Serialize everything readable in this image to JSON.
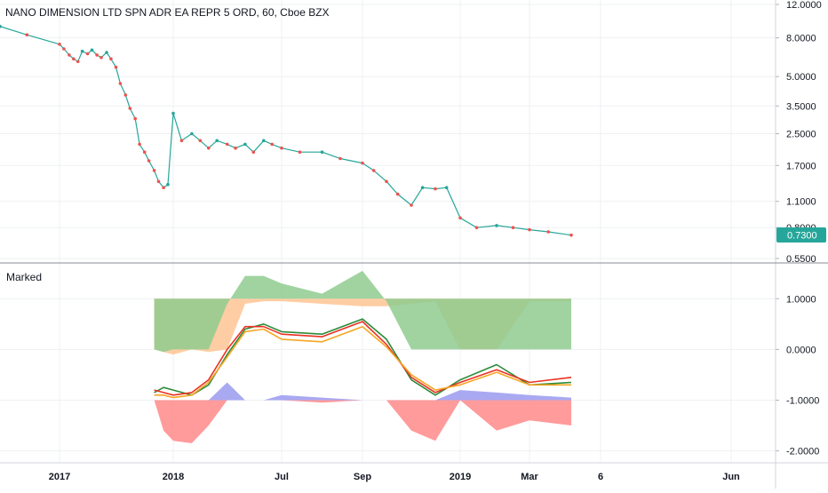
{
  "header": {
    "symbol_title": "NANO DIMENSION LTD SPN ADR EA REPR 5 ORD, 60, Cboe BZX"
  },
  "indicator": {
    "title": "Marked"
  },
  "colors": {
    "grid": "#eef0f3",
    "separator": "#878b94",
    "candle_up": "#26a69a",
    "candle_down": "#ef5350",
    "price_badge": "#26a69a",
    "indicator_green": "#2e8b3a",
    "indicator_red": "#ea3323",
    "indicator_orange": "#f5a623",
    "area_green": "#8fcb8f",
    "area_peach": "#ffc899",
    "area_blue": "#9a9af0",
    "area_red": "#ff8a8a"
  },
  "chart_data": [
    {
      "type": "line",
      "title": "NANO DIMENSION LTD SPN ADR EA REPR 5 ORD, 60, Cboe BZX",
      "scale": "log",
      "x_labels": [
        "2017",
        "2018",
        "Jul",
        "Sep",
        "2019",
        "Mar",
        "6",
        "Jun"
      ],
      "y_ticks": [
        "12.0000",
        "8.0000",
        "5.0000",
        "3.5000",
        "2.5000",
        "1.7000",
        "1.1000",
        "0.8000",
        "0.5500"
      ],
      "last_price": "0.7300",
      "x": [
        "2016-12-01",
        "2016-12-15",
        "2017-01-01",
        "2017-01-15",
        "2017-02-01",
        "2017-02-15",
        "2017-03-01",
        "2017-03-15",
        "2017-04-01",
        "2017-04-15",
        "2017-05-01",
        "2017-05-15",
        "2017-06-01",
        "2017-06-15",
        "2017-07-01",
        "2017-07-15",
        "2017-08-01",
        "2017-08-15",
        "2017-09-01",
        "2017-09-15",
        "2017-10-01",
        "2017-10-15",
        "2017-11-01",
        "2017-11-15",
        "2017-12-01",
        "2017-12-15",
        "2018-01-01",
        "2018-01-15",
        "2018-02-01",
        "2018-02-15",
        "2018-03-01",
        "2018-03-15",
        "2018-04-01",
        "2018-04-15",
        "2018-05-01",
        "2018-05-15",
        "2018-06-01",
        "2018-06-15",
        "2018-07-01",
        "2018-07-15",
        "2018-08-01",
        "2018-08-15",
        "2018-09-01",
        "2018-09-15",
        "2018-10-01",
        "2018-10-15",
        "2018-11-01",
        "2018-11-15",
        "2018-12-01",
        "2018-12-15",
        "2019-01-01",
        "2019-01-15",
        "2019-02-01",
        "2019-02-15",
        "2019-03-01",
        "2019-03-15",
        "2019-04-01"
      ],
      "y": [
        9.2,
        8.3,
        7.4,
        7.0,
        6.5,
        6.2,
        6.0,
        6.8,
        6.6,
        6.9,
        6.5,
        6.3,
        6.7,
        6.2,
        5.6,
        4.6,
        4.0,
        3.4,
        3.0,
        2.2,
        2.0,
        1.8,
        1.6,
        1.4,
        1.3,
        1.35,
        3.2,
        2.3,
        2.5,
        2.3,
        2.1,
        2.3,
        2.2,
        2.1,
        2.2,
        2.0,
        2.3,
        2.2,
        2.1,
        2.0,
        2.0,
        1.85,
        1.75,
        1.6,
        1.4,
        1.2,
        1.05,
        1.3,
        1.28,
        1.3,
        0.9,
        0.8,
        0.82,
        0.8,
        0.78,
        0.76,
        0.73
      ]
    },
    {
      "type": "area",
      "title": "Marked",
      "y_ticks": [
        "1.0000",
        "0.0000",
        "-1.0000",
        "-2.0000"
      ],
      "ylim": [
        -2.2,
        1.6
      ],
      "x": [
        "2017-11-01",
        "2017-12-01",
        "2018-01-01",
        "2018-02-01",
        "2018-03-01",
        "2018-04-01",
        "2018-05-01",
        "2018-06-01",
        "2018-07-01",
        "2018-08-01",
        "2018-09-01",
        "2018-10-01",
        "2018-11-01",
        "2018-12-01",
        "2019-01-01",
        "2019-02-01",
        "2019-03-01",
        "2019-04-01"
      ],
      "series": [
        {
          "values": [
            -0.85,
            -0.75,
            -0.8,
            -0.9,
            -0.7,
            -0.1,
            0.4,
            0.5,
            0.35,
            0.3,
            0.6,
            0.2,
            -0.6,
            -0.9,
            -0.6,
            -0.3,
            -0.7,
            -0.65
          ]
        },
        {
          "values": [
            -0.8,
            -0.85,
            -0.9,
            -0.85,
            -0.6,
            0.0,
            0.45,
            0.45,
            0.3,
            0.25,
            0.55,
            0.1,
            -0.55,
            -0.85,
            -0.65,
            -0.4,
            -0.65,
            -0.55
          ]
        },
        {
          "values": [
            -0.9,
            -0.9,
            -0.95,
            -0.9,
            -0.65,
            -0.15,
            0.35,
            0.4,
            0.2,
            0.15,
            0.45,
            0.05,
            -0.5,
            -0.8,
            -0.7,
            -0.45,
            -0.7,
            -0.7
          ]
        },
        {
          "values": [
            0,
            -0.05,
            0,
            0,
            0,
            0.9,
            1.45,
            1.45,
            1.3,
            1.1,
            1.55,
            0.95,
            0,
            0,
            0,
            0,
            0,
            0
          ]
        },
        {
          "values": [
            0,
            -0.05,
            -0.1,
            0,
            -0.05,
            0,
            0.9,
            0.95,
            0.95,
            0.9,
            0.85,
            0.85,
            0.9,
            0.95,
            0,
            0,
            0.95,
            0.95
          ]
        },
        {
          "values": [
            -1.0,
            -1.0,
            -1.0,
            -1.0,
            -1.0,
            -0.65,
            -1.0,
            -1.0,
            -0.9,
            -0.95,
            -1.0,
            -1.0,
            -1.0,
            -1.0,
            -0.8,
            -0.85,
            -0.9,
            -0.95
          ]
        },
        {
          "values": [
            -1.0,
            -1.6,
            -1.8,
            -1.85,
            -1.5,
            -1.0,
            -1.0,
            -1.0,
            -1.0,
            -1.05,
            -1.0,
            -1.0,
            -1.6,
            -1.8,
            -1.0,
            -1.6,
            -1.4,
            -1.5
          ]
        }
      ]
    }
  ]
}
